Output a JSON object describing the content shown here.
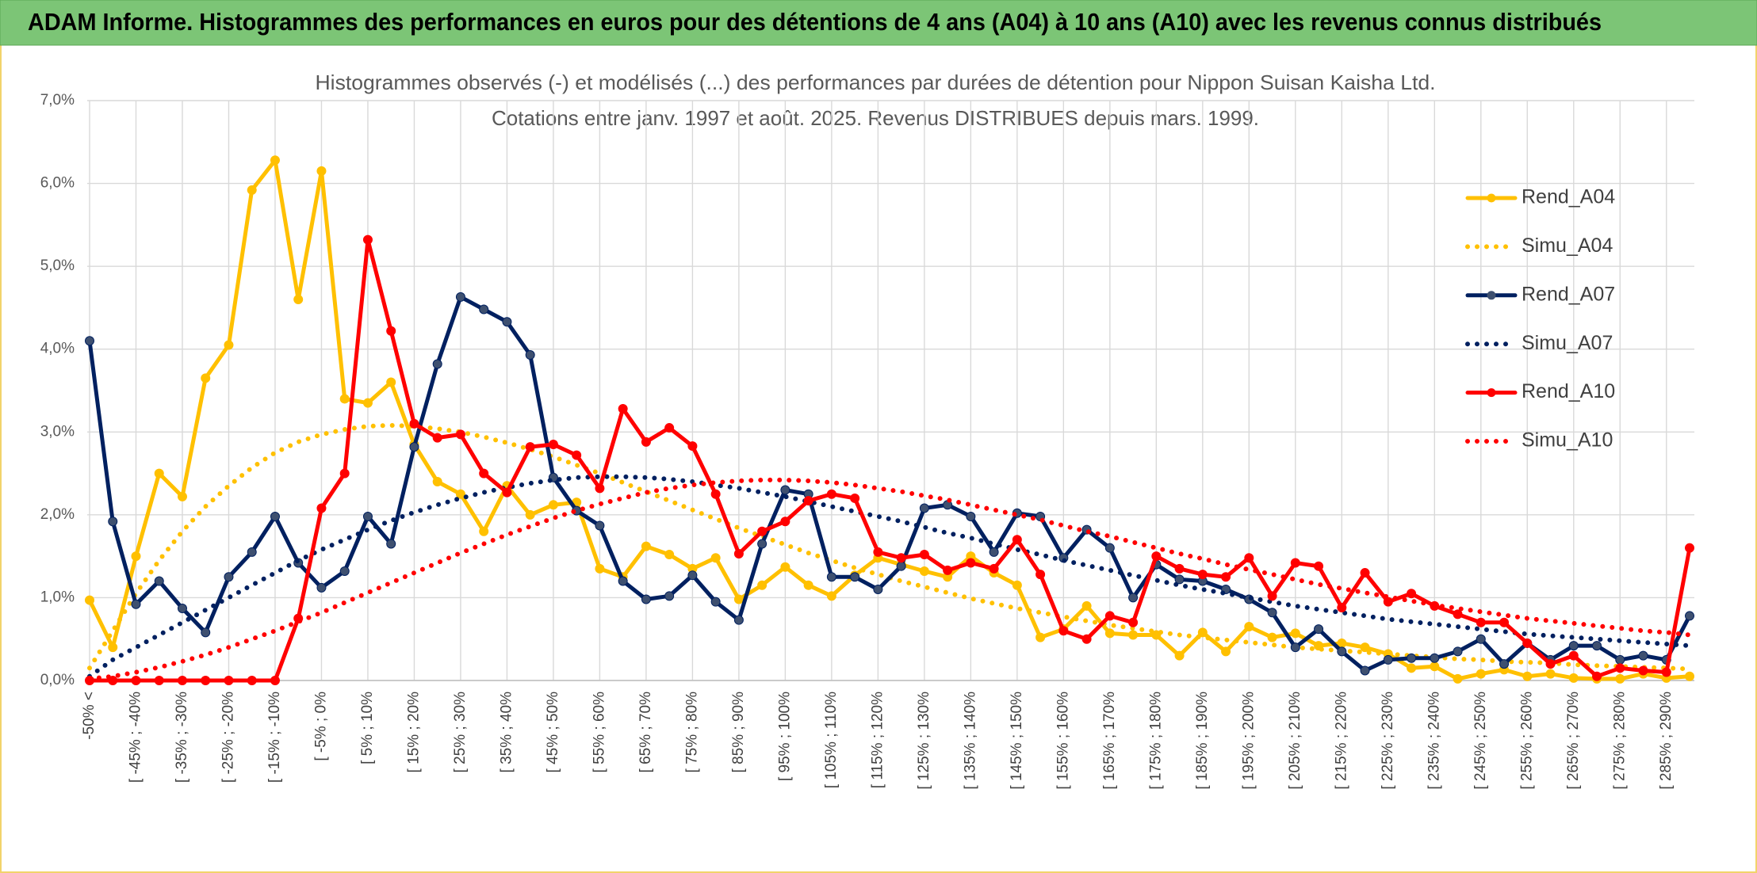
{
  "chart_data": {
    "type": "line",
    "title": "ADAM Informe. Histogrammes des performances en euros pour des détentions de 4 ans (A04) à 10 ans (A10) avec les revenus connus distribués",
    "subtitle": [
      "Histogrammes observés (-) et modélisés (...) des performances par durées de détention pour Nippon Suisan Kaisha Ltd.",
      "Cotations entre janv. 1997 et août. 2025. Revenus DISTRIBUES depuis mars. 1999."
    ],
    "categories": [
      "-50% <",
      null,
      "[ -45% ; -40%",
      null,
      "[ -35% ; -30%",
      null,
      "[ -25% ; -20%",
      null,
      "[ -15% ; -10%",
      null,
      "[ -5% ; 0%",
      null,
      "[ 5% ; 10%",
      null,
      "[ 15% ; 20%",
      null,
      "[ 25% ; 30%",
      null,
      "[ 35% ; 40%",
      null,
      "[ 45% ; 50%",
      null,
      "[ 55% ; 60%",
      null,
      "[ 65% ; 70%",
      null,
      "[ 75% ; 80%",
      null,
      "[ 85% ; 90%",
      null,
      "[ 95% ; 100%",
      null,
      "[ 105% ; 110%",
      null,
      "[ 115% ; 120%",
      null,
      "[ 125% ; 130%",
      null,
      "[ 135% ; 140%",
      null,
      "[ 145% ; 150%",
      null,
      "[ 155% ; 160%",
      null,
      "[ 165% ; 170%",
      null,
      "[ 175% ; 180%",
      null,
      "[ 185% ; 190%",
      null,
      "[ 195% ; 200%",
      null,
      "[ 205% ; 210%",
      null,
      "[ 215% ; 220%",
      null,
      "[ 225% ; 230%",
      null,
      "[ 235% ; 240%",
      null,
      "[ 245% ; 250%",
      null,
      "[ 255% ; 260%",
      null,
      "[ 265% ; 270%",
      null,
      "[ 275% ; 280%",
      null,
      "[ 285% ; 290%",
      null
    ],
    "ylim": [
      0,
      7
    ],
    "yticks": [
      {
        "value": 0,
        "label": "0,0%"
      },
      {
        "value": 1,
        "label": "1,0%"
      },
      {
        "value": 2,
        "label": "2,0%"
      },
      {
        "value": 3,
        "label": "3,0%"
      },
      {
        "value": 4,
        "label": "4,0%"
      },
      {
        "value": 5,
        "label": "5,0%"
      },
      {
        "value": 6,
        "label": "6,0%"
      },
      {
        "value": 7,
        "label": "7,0%"
      }
    ],
    "grid": true,
    "legend": "right",
    "series": [
      {
        "name": "Rend_A04",
        "color": "#ffc000",
        "style": "solid",
        "marker": true,
        "values": [
          0.97,
          0.4,
          1.5,
          2.5,
          2.22,
          3.65,
          4.05,
          5.92,
          6.28,
          4.6,
          6.15,
          3.4,
          3.35,
          3.6,
          2.85,
          2.4,
          2.25,
          1.8,
          2.35,
          2.0,
          2.12,
          2.15,
          1.35,
          1.25,
          1.62,
          1.52,
          1.35,
          1.48,
          0.98,
          1.15,
          1.37,
          1.15,
          1.02,
          1.27,
          1.48,
          1.4,
          1.32,
          1.25,
          1.5,
          1.3,
          1.15,
          0.52,
          0.62,
          0.9,
          0.57,
          0.55,
          0.55,
          0.3,
          0.58,
          0.35,
          0.65,
          0.52,
          0.57,
          0.42,
          0.45,
          0.4,
          0.32,
          0.15,
          0.17,
          0.02,
          0.08,
          0.13,
          0.05,
          0.08,
          0.03,
          0.02,
          0.02,
          0.08,
          0.03,
          0.05
        ]
      },
      {
        "name": "Simu_A04",
        "color": "#ffc000",
        "style": "dotted",
        "marker": false,
        "values": [
          0.15,
          0.6,
          1.05,
          1.45,
          1.8,
          2.1,
          2.35,
          2.57,
          2.75,
          2.88,
          2.97,
          3.03,
          3.07,
          3.08,
          3.07,
          3.04,
          3.0,
          2.94,
          2.87,
          2.79,
          2.7,
          2.6,
          2.5,
          2.39,
          2.28,
          2.17,
          2.06,
          1.95,
          1.84,
          1.74,
          1.64,
          1.54,
          1.45,
          1.36,
          1.28,
          1.2,
          1.13,
          1.06,
          0.99,
          0.93,
          0.87,
          0.82,
          0.77,
          0.72,
          0.67,
          0.63,
          0.59,
          0.55,
          0.52,
          0.49,
          0.46,
          0.43,
          0.4,
          0.38,
          0.36,
          0.34,
          0.32,
          0.3,
          0.28,
          0.26,
          0.25,
          0.23,
          0.22,
          0.21,
          0.19,
          0.18,
          0.17,
          0.16,
          0.15,
          0.14
        ]
      },
      {
        "name": "Rend_A07",
        "color": "#002060",
        "style": "solid",
        "marker": true,
        "values": [
          4.1,
          1.92,
          0.92,
          1.2,
          0.87,
          0.58,
          1.25,
          1.55,
          1.98,
          1.42,
          1.12,
          1.32,
          1.98,
          1.65,
          2.82,
          3.82,
          4.63,
          4.48,
          4.33,
          3.93,
          2.45,
          2.05,
          1.87,
          1.2,
          0.98,
          1.02,
          1.27,
          0.95,
          0.73,
          1.65,
          2.3,
          2.25,
          1.25,
          1.25,
          1.1,
          1.38,
          2.08,
          2.12,
          1.98,
          1.55,
          2.02,
          1.98,
          1.48,
          1.82,
          1.6,
          1.0,
          1.4,
          1.22,
          1.2,
          1.1,
          0.98,
          0.82,
          0.4,
          0.62,
          0.35,
          0.12,
          0.25,
          0.27,
          0.27,
          0.35,
          0.5,
          0.2,
          0.45,
          0.25,
          0.42,
          0.42,
          0.25,
          0.3,
          0.25,
          0.78
        ]
      },
      {
        "name": "Simu_A07",
        "color": "#002060",
        "style": "dotted",
        "marker": false,
        "values": [
          0.05,
          0.25,
          0.4,
          0.55,
          0.7,
          0.85,
          1.0,
          1.15,
          1.3,
          1.45,
          1.58,
          1.7,
          1.82,
          1.93,
          2.03,
          2.12,
          2.2,
          2.27,
          2.33,
          2.38,
          2.42,
          2.45,
          2.46,
          2.46,
          2.45,
          2.43,
          2.4,
          2.36,
          2.32,
          2.27,
          2.22,
          2.16,
          2.1,
          2.04,
          1.98,
          1.92,
          1.85,
          1.78,
          1.72,
          1.65,
          1.58,
          1.52,
          1.45,
          1.39,
          1.33,
          1.27,
          1.21,
          1.15,
          1.1,
          1.05,
          1.0,
          0.95,
          0.9,
          0.86,
          0.82,
          0.78,
          0.74,
          0.71,
          0.68,
          0.65,
          0.62,
          0.59,
          0.56,
          0.54,
          0.52,
          0.5,
          0.48,
          0.46,
          0.44,
          0.42
        ]
      },
      {
        "name": "Rend_A10",
        "color": "#ff0000",
        "style": "solid",
        "marker": true,
        "values": [
          0,
          0,
          0,
          0,
          0,
          0,
          0,
          0,
          0,
          0.75,
          2.08,
          2.5,
          5.32,
          4.22,
          3.1,
          2.93,
          2.97,
          2.5,
          2.27,
          2.82,
          2.85,
          2.72,
          2.32,
          3.28,
          2.88,
          3.05,
          2.83,
          2.25,
          1.53,
          1.8,
          1.92,
          2.17,
          2.25,
          2.2,
          1.55,
          1.48,
          1.52,
          1.33,
          1.42,
          1.35,
          1.7,
          1.28,
          0.6,
          0.5,
          0.78,
          0.7,
          1.5,
          1.35,
          1.28,
          1.25,
          1.48,
          1.02,
          1.42,
          1.38,
          0.88,
          1.3,
          0.95,
          1.05,
          0.9,
          0.8,
          0.7,
          0.7,
          0.45,
          0.2,
          0.3,
          0.05,
          0.15,
          0.12,
          0.1,
          1.6
        ]
      },
      {
        "name": "Simu_A10",
        "color": "#ff0000",
        "style": "dotted",
        "marker": false,
        "values": [
          0.02,
          0.05,
          0.1,
          0.16,
          0.23,
          0.31,
          0.4,
          0.5,
          0.6,
          0.71,
          0.82,
          0.94,
          1.06,
          1.18,
          1.3,
          1.42,
          1.54,
          1.65,
          1.76,
          1.86,
          1.96,
          2.05,
          2.13,
          2.2,
          2.27,
          2.32,
          2.36,
          2.39,
          2.41,
          2.42,
          2.42,
          2.41,
          2.39,
          2.36,
          2.32,
          2.28,
          2.23,
          2.18,
          2.12,
          2.06,
          2.0,
          1.94,
          1.87,
          1.8,
          1.74,
          1.67,
          1.6,
          1.53,
          1.47,
          1.4,
          1.34,
          1.28,
          1.22,
          1.16,
          1.11,
          1.06,
          1.01,
          0.96,
          0.91,
          0.87,
          0.83,
          0.79,
          0.75,
          0.72,
          0.69,
          0.66,
          0.63,
          0.6,
          0.58,
          0.55
        ]
      }
    ]
  }
}
